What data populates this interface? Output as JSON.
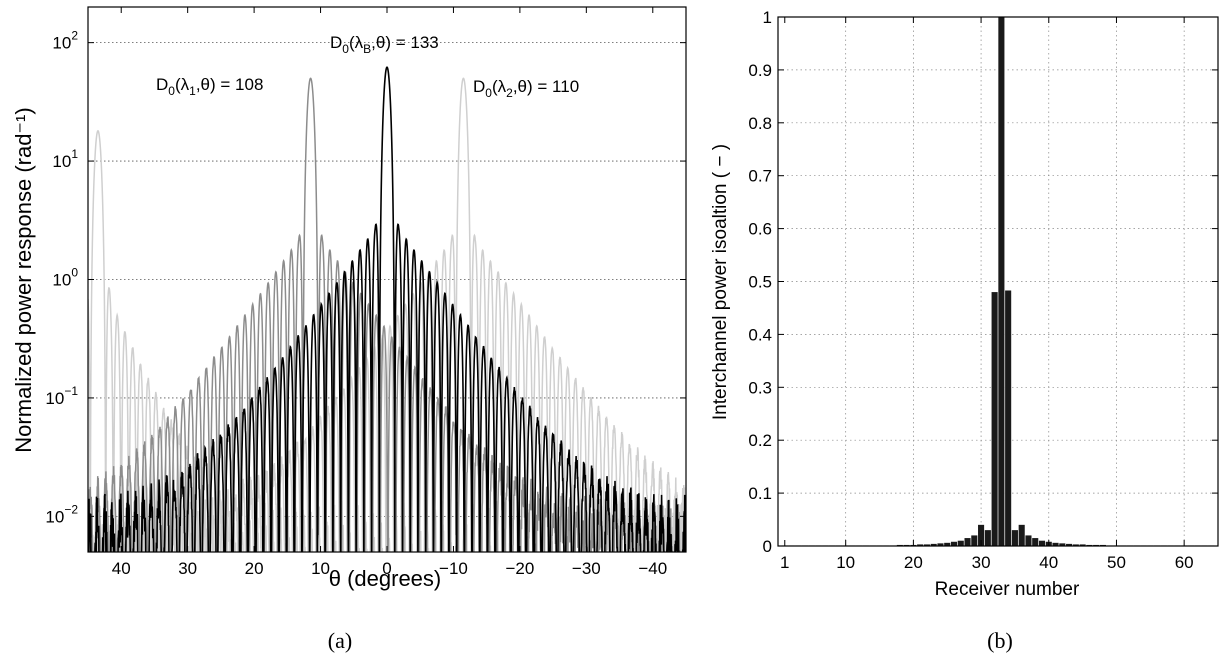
{
  "panels": {
    "a": {
      "caption": "(a)"
    },
    "b": {
      "caption": "(b)"
    }
  },
  "chart_data": [
    {
      "type": "line",
      "panel": "a",
      "xlabel": "θ (degrees)",
      "ylabel": "Normalized power response (rad⁻¹)",
      "xlim": [
        45,
        -45
      ],
      "ylim": [
        0.005,
        200
      ],
      "yscale": "log",
      "grid": "horizontal dotted at decades",
      "xticks": [
        40,
        30,
        20,
        10,
        0,
        -10,
        -20,
        -30,
        -40
      ],
      "xtick_labels": [
        "40",
        "30",
        "20",
        "10",
        "0",
        "−10",
        "−20",
        "−30",
        "−40"
      ],
      "yticks": [
        0.01,
        0.1,
        1,
        10,
        100
      ],
      "ytick_labels": [
        {
          "base": "10",
          "exp": "−2"
        },
        {
          "base": "10",
          "exp": "−1"
        },
        {
          "base": "10",
          "exp": "0"
        },
        {
          "base": "10",
          "exp": "1"
        },
        {
          "base": "10",
          "exp": "2"
        }
      ],
      "annotations": [
        {
          "pre": "D",
          "sub1": "0",
          "mid": "(λ",
          "sub2": "B",
          "post": ",θ) = 133"
        },
        {
          "pre": "D",
          "sub1": "0",
          "mid": "(λ",
          "sub2": "1",
          "post": ",θ) = 108"
        },
        {
          "pre": "D",
          "sub1": "0",
          "mid": "(λ",
          "sub2": "2",
          "post": ",θ) = 110"
        }
      ],
      "series": [
        {
          "peak_theta": 0,
          "peak_value": 62,
          "color": "#000000",
          "envelope_width": 12,
          "floor": 0.012,
          "first_sidelobe": 3.0
        },
        {
          "peak_theta": 11.5,
          "peak_value": 50,
          "color": "#8c8c8c",
          "envelope_width": 12,
          "floor": 0.012,
          "first_sidelobe": 3.0
        },
        {
          "peak_theta": -11.5,
          "peak_value": 50,
          "color": "#cfcfcf",
          "envelope_width": 12,
          "floor": 0.012,
          "first_sidelobe": 3.0
        },
        {
          "peak_theta": 43.5,
          "peak_value": 18,
          "color": "#cfcfcf",
          "envelope_width": 8,
          "floor": 0.012,
          "first_sidelobe": 1.2
        }
      ]
    },
    {
      "type": "bar",
      "panel": "b",
      "xlabel": "Receiver number",
      "ylabel": "Interchannel power isoaltion ( − )",
      "xlim": [
        0,
        65
      ],
      "ylim": [
        0,
        1
      ],
      "grid": "both dotted",
      "xticks": [
        1,
        10,
        20,
        30,
        40,
        50,
        60
      ],
      "xtick_labels": [
        "1",
        "10",
        "20",
        "30",
        "40",
        "50",
        "60"
      ],
      "yticks": [
        0,
        0.1,
        0.2,
        0.3,
        0.4,
        0.5,
        0.6,
        0.7,
        0.8,
        0.9,
        1
      ],
      "ytick_labels": [
        "0",
        "0.1",
        "0.2",
        "0.3",
        "0.4",
        "0.5",
        "0.6",
        "0.7",
        "0.8",
        "0.9",
        "1"
      ],
      "bar_color": "#1a1a1a",
      "categories": [
        1,
        2,
        3,
        4,
        5,
        6,
        7,
        8,
        9,
        10,
        11,
        12,
        13,
        14,
        15,
        16,
        17,
        18,
        19,
        20,
        21,
        22,
        23,
        24,
        25,
        26,
        27,
        28,
        29,
        30,
        31,
        32,
        33,
        34,
        35,
        36,
        37,
        38,
        39,
        40,
        41,
        42,
        43,
        44,
        45,
        46,
        47,
        48,
        49,
        50,
        51,
        52,
        53,
        54,
        55,
        56,
        57,
        58,
        59,
        60,
        61,
        62,
        63,
        64
      ],
      "values": [
        0.001,
        0.001,
        0.001,
        0.001,
        0.001,
        0.001,
        0.001,
        0.001,
        0.001,
        0.001,
        0.001,
        0.001,
        0.001,
        0.001,
        0.001,
        0.001,
        0.001,
        0.002,
        0.002,
        0.002,
        0.003,
        0.003,
        0.004,
        0.005,
        0.006,
        0.008,
        0.01,
        0.015,
        0.02,
        0.04,
        0.03,
        0.48,
        1.0,
        0.483,
        0.03,
        0.04,
        0.02,
        0.015,
        0.01,
        0.008,
        0.006,
        0.005,
        0.004,
        0.003,
        0.003,
        0.002,
        0.002,
        0.002,
        0.001,
        0.001,
        0.001,
        0.001,
        0.001,
        0.001,
        0.001,
        0.001,
        0.001,
        0.001,
        0.001,
        0.001,
        0.001,
        0.001,
        0.001,
        0.001
      ]
    }
  ]
}
